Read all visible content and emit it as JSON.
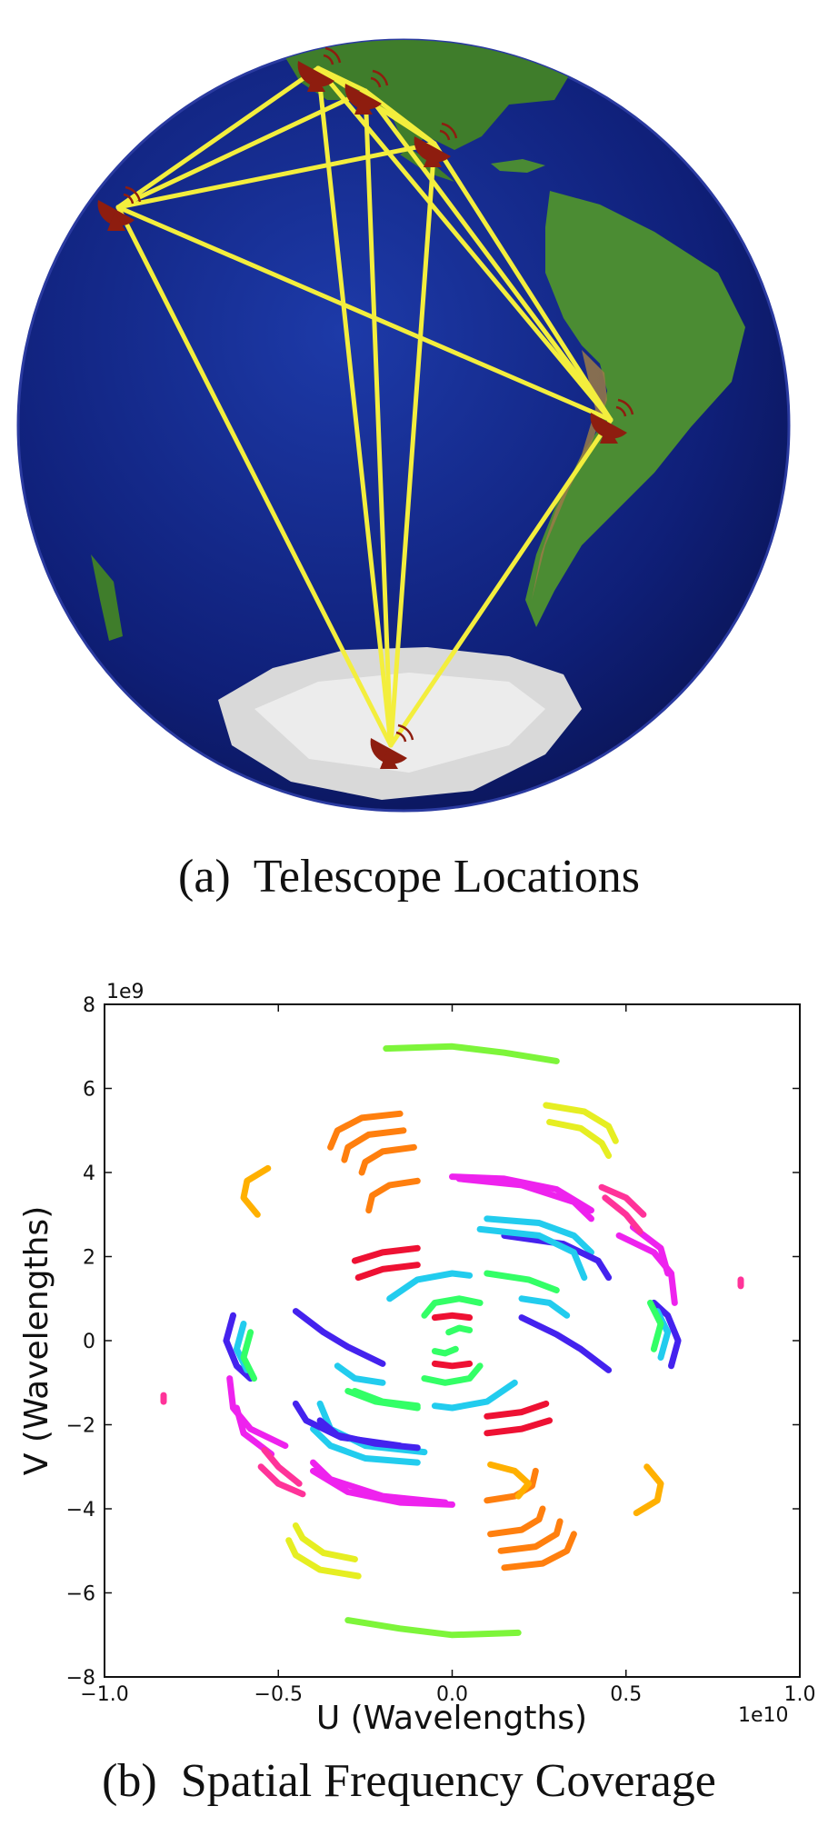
{
  "figure_a": {
    "caption_label": "(a)",
    "caption_text": "Telescope Locations",
    "telescopes": [
      "station-1",
      "station-2",
      "station-3",
      "station-4",
      "station-5",
      "station-6"
    ],
    "baseline_color": "#f3ee3d",
    "dish_color": "#8e1d0f",
    "ocean_color": "#10207a"
  },
  "figure_b": {
    "caption_label": "(b)",
    "caption_text": "Spatial Frequency Coverage"
  },
  "chart_data": {
    "type": "scatter",
    "xlabel": "U (Wavelengths)",
    "ylabel": "V (Wavelengths)",
    "x_exponent_label": "1e10",
    "y_exponent_label": "1e9",
    "xlim": [
      -1.0,
      1.0
    ],
    "ylim": [
      -8,
      8
    ],
    "x_ticks": [
      -1.0,
      -0.5,
      0.0,
      0.5,
      1.0
    ],
    "x_tick_labels": [
      "−1.0",
      "−0.5",
      "0.0",
      "0.5",
      "1.0"
    ],
    "y_ticks": [
      -8,
      -6,
      -4,
      -2,
      0,
      2,
      4,
      6,
      8
    ],
    "y_tick_labels": [
      "−8",
      "−6",
      "−4",
      "−2",
      "0",
      "2",
      "4",
      "6",
      "8"
    ],
    "grid": false,
    "tracks": [
      {
        "color": "#7df53a",
        "points": [
          [
            -0.19,
            6.95
          ],
          [
            0.0,
            7.0
          ],
          [
            0.15,
            6.85
          ],
          [
            0.3,
            6.65
          ]
        ]
      },
      {
        "color": "#7df53a",
        "points": [
          [
            0.19,
            -6.95
          ],
          [
            0.0,
            -7.0
          ],
          [
            -0.15,
            -6.85
          ],
          [
            -0.3,
            -6.65
          ]
        ]
      },
      {
        "color": "#e6ee22",
        "points": [
          [
            0.27,
            5.6
          ],
          [
            0.38,
            5.45
          ],
          [
            0.45,
            5.1
          ],
          [
            0.47,
            4.75
          ]
        ]
      },
      {
        "color": "#e6ee22",
        "points": [
          [
            0.28,
            5.2
          ],
          [
            0.37,
            5.05
          ],
          [
            0.43,
            4.7
          ],
          [
            0.45,
            4.4
          ]
        ]
      },
      {
        "color": "#e6ee22",
        "points": [
          [
            -0.27,
            -5.6
          ],
          [
            -0.38,
            -5.45
          ],
          [
            -0.45,
            -5.1
          ],
          [
            -0.47,
            -4.75
          ]
        ]
      },
      {
        "color": "#e6ee22",
        "points": [
          [
            -0.28,
            -5.2
          ],
          [
            -0.37,
            -5.05
          ],
          [
            -0.43,
            -4.7
          ],
          [
            -0.45,
            -4.4
          ]
        ]
      },
      {
        "color": "#ffb000",
        "points": [
          [
            -0.53,
            4.1
          ],
          [
            -0.59,
            3.8
          ],
          [
            -0.6,
            3.4
          ],
          [
            -0.56,
            3.0
          ]
        ]
      },
      {
        "color": "#ffb000",
        "points": [
          [
            0.53,
            -4.1
          ],
          [
            0.59,
            -3.8
          ],
          [
            0.6,
            -3.4
          ],
          [
            0.56,
            -3.0
          ]
        ]
      },
      {
        "color": "#ff7f0e",
        "points": [
          [
            -0.15,
            5.4
          ],
          [
            -0.26,
            5.3
          ],
          [
            -0.33,
            5.0
          ],
          [
            -0.35,
            4.6
          ]
        ]
      },
      {
        "color": "#ff7f0e",
        "points": [
          [
            -0.14,
            5.0
          ],
          [
            -0.24,
            4.9
          ],
          [
            -0.3,
            4.6
          ],
          [
            -0.31,
            4.3
          ]
        ]
      },
      {
        "color": "#ff7f0e",
        "points": [
          [
            -0.11,
            4.6
          ],
          [
            -0.2,
            4.5
          ],
          [
            -0.25,
            4.25
          ],
          [
            -0.26,
            4.0
          ]
        ]
      },
      {
        "color": "#ff7f0e",
        "points": [
          [
            -0.1,
            3.8
          ],
          [
            -0.18,
            3.7
          ],
          [
            -0.23,
            3.45
          ],
          [
            -0.24,
            3.1
          ]
        ]
      },
      {
        "color": "#ff7f0e",
        "points": [
          [
            0.15,
            -5.4
          ],
          [
            0.26,
            -5.3
          ],
          [
            0.33,
            -5.0
          ],
          [
            0.35,
            -4.6
          ]
        ]
      },
      {
        "color": "#ff7f0e",
        "points": [
          [
            0.14,
            -5.0
          ],
          [
            0.24,
            -4.9
          ],
          [
            0.3,
            -4.6
          ],
          [
            0.31,
            -4.3
          ]
        ]
      },
      {
        "color": "#ff7f0e",
        "points": [
          [
            0.11,
            -4.6
          ],
          [
            0.2,
            -4.5
          ],
          [
            0.25,
            -4.25
          ],
          [
            0.26,
            -4.0
          ]
        ]
      },
      {
        "color": "#ff7f0e",
        "points": [
          [
            0.1,
            -3.8
          ],
          [
            0.18,
            -3.7
          ],
          [
            0.23,
            -3.45
          ],
          [
            0.24,
            -3.1
          ]
        ]
      },
      {
        "color": "#ee22ee",
        "points": [
          [
            0.0,
            3.9
          ],
          [
            0.15,
            3.85
          ],
          [
            0.3,
            3.6
          ],
          [
            0.4,
            3.1
          ]
        ]
      },
      {
        "color": "#ee22ee",
        "points": [
          [
            0.0,
            -3.9
          ],
          [
            -0.15,
            -3.85
          ],
          [
            -0.3,
            -3.6
          ],
          [
            -0.4,
            -3.1
          ]
        ]
      },
      {
        "color": "#ff3399",
        "points": [
          [
            0.43,
            3.65
          ],
          [
            0.5,
            3.4
          ],
          [
            0.55,
            3.0
          ]
        ]
      },
      {
        "color": "#ff3399",
        "points": [
          [
            -0.43,
            -3.65
          ],
          [
            -0.5,
            -3.4
          ],
          [
            -0.55,
            -3.0
          ]
        ]
      },
      {
        "color": "#ee22ee",
        "points": [
          [
            0.52,
            2.7
          ],
          [
            0.6,
            2.2
          ],
          [
            0.62,
            1.6
          ]
        ]
      },
      {
        "color": "#ee22ee",
        "points": [
          [
            -0.52,
            -2.7
          ],
          [
            -0.6,
            -2.2
          ],
          [
            -0.62,
            -1.6
          ]
        ]
      },
      {
        "color": "#22ccee",
        "points": [
          [
            0.1,
            2.9
          ],
          [
            0.25,
            2.8
          ],
          [
            0.35,
            2.5
          ],
          [
            0.4,
            2.1
          ]
        ]
      },
      {
        "color": "#22ccee",
        "points": [
          [
            -0.1,
            -2.9
          ],
          [
            -0.25,
            -2.8
          ],
          [
            -0.35,
            -2.5
          ],
          [
            -0.4,
            -2.1
          ]
        ]
      },
      {
        "color": "#4422ee",
        "points": [
          [
            0.15,
            2.5
          ],
          [
            0.32,
            2.3
          ],
          [
            0.42,
            1.9
          ],
          [
            0.45,
            1.5
          ]
        ]
      },
      {
        "color": "#4422ee",
        "points": [
          [
            -0.15,
            -2.5
          ],
          [
            -0.32,
            -2.3
          ],
          [
            -0.42,
            -1.9
          ],
          [
            -0.45,
            -1.5
          ]
        ]
      },
      {
        "color": "#ee1133",
        "points": [
          [
            -0.28,
            1.9
          ],
          [
            -0.2,
            2.1
          ],
          [
            -0.1,
            2.2
          ]
        ]
      },
      {
        "color": "#ee1133",
        "points": [
          [
            -0.27,
            1.5
          ],
          [
            -0.2,
            1.7
          ],
          [
            -0.1,
            1.8
          ]
        ]
      },
      {
        "color": "#ee1133",
        "points": [
          [
            0.28,
            -1.9
          ],
          [
            0.2,
            -2.1
          ],
          [
            0.1,
            -2.2
          ]
        ]
      },
      {
        "color": "#ee1133",
        "points": [
          [
            0.27,
            -1.5
          ],
          [
            0.2,
            -1.7
          ],
          [
            0.1,
            -1.8
          ]
        ]
      },
      {
        "color": "#22ccee",
        "points": [
          [
            -0.18,
            1.0
          ],
          [
            -0.1,
            1.45
          ],
          [
            0.0,
            1.6
          ],
          [
            0.05,
            1.55
          ]
        ]
      },
      {
        "color": "#22ccee",
        "points": [
          [
            0.18,
            -1.0
          ],
          [
            0.1,
            -1.45
          ],
          [
            0.0,
            -1.6
          ],
          [
            -0.05,
            -1.55
          ]
        ]
      },
      {
        "color": "#33ff66",
        "points": [
          [
            0.1,
            1.6
          ],
          [
            0.22,
            1.45
          ],
          [
            0.3,
            1.2
          ]
        ]
      },
      {
        "color": "#33ff66",
        "points": [
          [
            -0.1,
            -1.6
          ],
          [
            -0.22,
            -1.45
          ],
          [
            -0.3,
            -1.2
          ]
        ]
      },
      {
        "color": "#22ccee",
        "points": [
          [
            0.2,
            1.0
          ],
          [
            0.28,
            0.9
          ],
          [
            0.33,
            0.6
          ]
        ]
      },
      {
        "color": "#22ccee",
        "points": [
          [
            -0.2,
            -1.0
          ],
          [
            -0.28,
            -0.9
          ],
          [
            -0.33,
            -0.6
          ]
        ]
      },
      {
        "color": "#4422ee",
        "points": [
          [
            -0.45,
            0.7
          ],
          [
            -0.37,
            0.2
          ],
          [
            -0.3,
            -0.15
          ],
          [
            -0.2,
            -0.55
          ]
        ]
      },
      {
        "color": "#4422ee",
        "points": [
          [
            0.45,
            -0.7
          ],
          [
            0.37,
            -0.2
          ],
          [
            0.3,
            0.15
          ],
          [
            0.2,
            0.55
          ]
        ]
      },
      {
        "color": "#4422ee",
        "points": [
          [
            -0.63,
            0.6
          ],
          [
            -0.65,
            0.0
          ],
          [
            -0.62,
            -0.6
          ],
          [
            -0.58,
            -0.9
          ]
        ]
      },
      {
        "color": "#4422ee",
        "points": [
          [
            0.63,
            -0.6
          ],
          [
            0.65,
            0.0
          ],
          [
            0.62,
            0.6
          ],
          [
            0.58,
            0.9
          ]
        ]
      },
      {
        "color": "#22ccee",
        "points": [
          [
            -0.6,
            0.4
          ],
          [
            -0.62,
            -0.2
          ],
          [
            -0.59,
            -0.7
          ]
        ]
      },
      {
        "color": "#22ccee",
        "points": [
          [
            0.6,
            -0.4
          ],
          [
            0.62,
            0.2
          ],
          [
            0.59,
            0.7
          ]
        ]
      },
      {
        "color": "#33ff66",
        "points": [
          [
            -0.58,
            0.2
          ],
          [
            -0.6,
            -0.4
          ],
          [
            -0.57,
            -0.9
          ]
        ]
      },
      {
        "color": "#33ff66",
        "points": [
          [
            0.58,
            -0.2
          ],
          [
            0.6,
            0.4
          ],
          [
            0.57,
            0.9
          ]
        ]
      },
      {
        "color": "#ee22ee",
        "points": [
          [
            -0.64,
            -0.9
          ],
          [
            -0.63,
            -1.6
          ],
          [
            -0.58,
            -2.1
          ],
          [
            -0.48,
            -2.5
          ]
        ]
      },
      {
        "color": "#ee22ee",
        "points": [
          [
            0.64,
            0.9
          ],
          [
            0.63,
            1.6
          ],
          [
            0.58,
            2.1
          ],
          [
            0.48,
            2.5
          ]
        ]
      },
      {
        "color": "#ff3399",
        "points": [
          [
            -0.54,
            -2.6
          ],
          [
            -0.5,
            -3.0
          ],
          [
            -0.44,
            -3.4
          ]
        ]
      },
      {
        "color": "#ff3399",
        "points": [
          [
            0.54,
            2.6
          ],
          [
            0.5,
            3.0
          ],
          [
            0.44,
            3.4
          ]
        ]
      },
      {
        "color": "#22ccee",
        "points": [
          [
            -0.38,
            -1.5
          ],
          [
            -0.35,
            -2.1
          ],
          [
            -0.25,
            -2.5
          ],
          [
            -0.08,
            -2.65
          ]
        ]
      },
      {
        "color": "#22ccee",
        "points": [
          [
            0.38,
            1.5
          ],
          [
            0.35,
            2.1
          ],
          [
            0.25,
            2.5
          ],
          [
            0.08,
            2.65
          ]
        ]
      },
      {
        "color": "#4422ee",
        "points": [
          [
            -0.38,
            -1.9
          ],
          [
            -0.33,
            -2.25
          ],
          [
            -0.22,
            -2.45
          ],
          [
            -0.1,
            -2.55
          ]
        ]
      },
      {
        "color": "#ee22ee",
        "points": [
          [
            -0.4,
            -2.9
          ],
          [
            -0.35,
            -3.3
          ],
          [
            -0.2,
            -3.7
          ],
          [
            -0.02,
            -3.85
          ]
        ]
      },
      {
        "color": "#ee22ee",
        "points": [
          [
            0.4,
            2.9
          ],
          [
            0.35,
            3.3
          ],
          [
            0.2,
            3.7
          ],
          [
            0.02,
            3.85
          ]
        ]
      },
      {
        "color": "#ffb000",
        "points": [
          [
            0.11,
            -2.95
          ],
          [
            0.18,
            -3.1
          ],
          [
            0.22,
            -3.4
          ],
          [
            0.19,
            -3.7
          ]
        ]
      },
      {
        "color": "#33ff66",
        "points": [
          [
            -0.28,
            -1.2
          ],
          [
            -0.2,
            -1.45
          ],
          [
            -0.1,
            -1.55
          ]
        ]
      },
      {
        "color": "#ee1133",
        "points": [
          [
            -0.05,
            0.55
          ],
          [
            0.0,
            0.6
          ],
          [
            0.05,
            0.55
          ]
        ]
      },
      {
        "color": "#ee1133",
        "points": [
          [
            0.05,
            -0.55
          ],
          [
            0.0,
            -0.6
          ],
          [
            -0.05,
            -0.55
          ]
        ]
      },
      {
        "color": "#33ff66",
        "points": [
          [
            -0.08,
            0.6
          ],
          [
            -0.05,
            0.9
          ],
          [
            0.02,
            1.0
          ],
          [
            0.08,
            0.9
          ]
        ]
      },
      {
        "color": "#33ff66",
        "points": [
          [
            0.08,
            -0.6
          ],
          [
            0.05,
            -0.9
          ],
          [
            -0.02,
            -1.0
          ],
          [
            -0.08,
            -0.9
          ]
        ]
      },
      {
        "color": "#33ff66",
        "points": [
          [
            -0.01,
            0.2
          ],
          [
            0.02,
            0.3
          ],
          [
            0.05,
            0.25
          ]
        ]
      },
      {
        "color": "#33ff66",
        "points": [
          [
            0.01,
            -0.2
          ],
          [
            -0.02,
            -0.3
          ],
          [
            -0.05,
            -0.25
          ]
        ]
      },
      {
        "color": "#ff3399",
        "points": [
          [
            0.83,
            1.3
          ],
          [
            0.83,
            1.45
          ]
        ]
      },
      {
        "color": "#ff3399",
        "points": [
          [
            -0.83,
            -1.3
          ],
          [
            -0.83,
            -1.45
          ]
        ]
      }
    ]
  }
}
